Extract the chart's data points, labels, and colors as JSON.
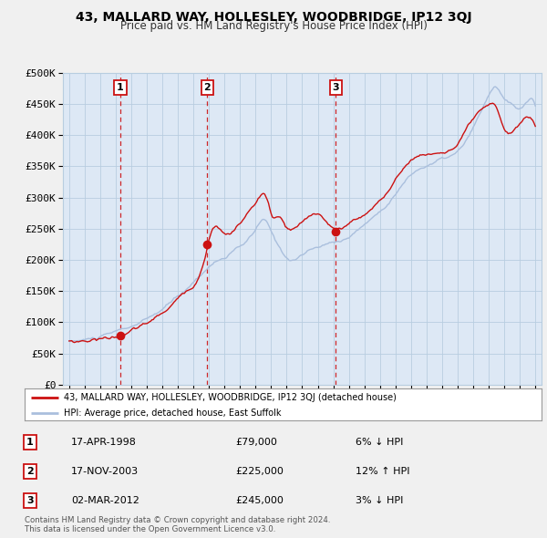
{
  "title": "43, MALLARD WAY, HOLLESLEY, WOODBRIDGE, IP12 3QJ",
  "subtitle": "Price paid vs. HM Land Registry's House Price Index (HPI)",
  "ylim": [
    0,
    500000
  ],
  "yticks": [
    0,
    50000,
    100000,
    150000,
    200000,
    250000,
    300000,
    350000,
    400000,
    450000,
    500000
  ],
  "ytick_labels": [
    "£0",
    "£50K",
    "£100K",
    "£150K",
    "£200K",
    "£250K",
    "£300K",
    "£350K",
    "£400K",
    "£450K",
    "£500K"
  ],
  "xlim_start": 1994.6,
  "xlim_end": 2025.4,
  "xticks": [
    1995,
    1996,
    1997,
    1998,
    1999,
    2000,
    2001,
    2002,
    2003,
    2004,
    2005,
    2006,
    2007,
    2008,
    2009,
    2010,
    2011,
    2012,
    2013,
    2014,
    2015,
    2016,
    2017,
    2018,
    2019,
    2020,
    2021,
    2022,
    2023,
    2024,
    2025
  ],
  "sales": [
    {
      "date": 1998.29,
      "price": 79000,
      "label": "1"
    },
    {
      "date": 2003.88,
      "price": 225000,
      "label": "2"
    },
    {
      "date": 2012.17,
      "price": 245000,
      "label": "3"
    }
  ],
  "hpi_color": "#aabfdd",
  "sale_color": "#cc1111",
  "plot_bg_color": "#dde8f5",
  "bg_color": "#f0f0f0",
  "grid_color": "#b8cde0",
  "legend_sale_label": "43, MALLARD WAY, HOLLESLEY, WOODBRIDGE, IP12 3QJ (detached house)",
  "legend_hpi_label": "HPI: Average price, detached house, East Suffolk",
  "table_rows": [
    {
      "num": "1",
      "date": "17-APR-1998",
      "price": "£79,000",
      "hpi": "6% ↓ HPI"
    },
    {
      "num": "2",
      "date": "17-NOV-2003",
      "price": "£225,000",
      "hpi": "12% ↑ HPI"
    },
    {
      "num": "3",
      "date": "02-MAR-2012",
      "price": "£245,000",
      "hpi": "3% ↓ HPI"
    }
  ],
  "footer": "Contains HM Land Registry data © Crown copyright and database right 2024.\nThis data is licensed under the Open Government Licence v3.0."
}
